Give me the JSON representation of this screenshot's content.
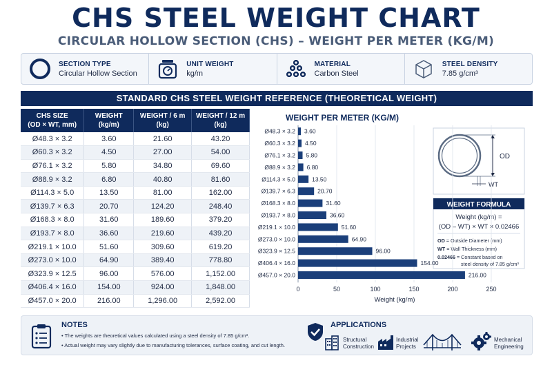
{
  "header": {
    "title": "CHS STEEL WEIGHT CHART",
    "subtitle": "CIRCULAR HOLLOW SECTION (CHS) – WEIGHT PER METER (KG/M)"
  },
  "info": [
    {
      "label": "SECTION TYPE",
      "value": "Circular Hollow Section",
      "icon": "ring-icon"
    },
    {
      "label": "UNIT WEIGHT",
      "value": "kg/m",
      "icon": "scale-icon"
    },
    {
      "label": "MATERIAL",
      "value": "Carbon Steel",
      "icon": "pipe-stack-icon"
    },
    {
      "label": "STEEL DENSITY",
      "value": "7.85 g/cm³",
      "icon": "cube-icon"
    }
  ],
  "band_title": "STANDARD CHS STEEL WEIGHT REFERENCE (THEORETICAL WEIGHT)",
  "table": {
    "headers": [
      [
        "CHS SIZE",
        "(OD × WT, mm)"
      ],
      [
        "WEIGHT",
        "(kg/m)"
      ],
      [
        "WEIGHT / 6 m",
        "(kg)"
      ],
      [
        "WEIGHT / 12 m",
        "(kg)"
      ]
    ],
    "rows": [
      [
        "Ø48.3 × 3.2",
        "3.60",
        "21.60",
        "43.20"
      ],
      [
        "Ø60.3 × 3.2",
        "4.50",
        "27.00",
        "54.00"
      ],
      [
        "Ø76.1 × 3.2",
        "5.80",
        "34.80",
        "69.60"
      ],
      [
        "Ø88.9 × 3.2",
        "6.80",
        "40.80",
        "81.60"
      ],
      [
        "Ø114.3 × 5.0",
        "13.50",
        "81.00",
        "162.00"
      ],
      [
        "Ø139.7 × 6.3",
        "20.70",
        "124.20",
        "248.40"
      ],
      [
        "Ø168.3 × 8.0",
        "31.60",
        "189.60",
        "379.20"
      ],
      [
        "Ø193.7 × 8.0",
        "36.60",
        "219.60",
        "439.20"
      ],
      [
        "Ø219.1 × 10.0",
        "51.60",
        "309.60",
        "619.20"
      ],
      [
        "Ø273.0 × 10.0",
        "64.90",
        "389.40",
        "778.80"
      ],
      [
        "Ø323.9 × 12.5",
        "96.00",
        "576.00",
        "1,152.00"
      ],
      [
        "Ø406.4 × 16.0",
        "154.00",
        "924.00",
        "1,848.00"
      ],
      [
        "Ø457.0 × 20.0",
        "216.00",
        "1,296.00",
        "2,592.00"
      ]
    ]
  },
  "chart_data": {
    "type": "bar",
    "orientation": "horizontal",
    "title": "WEIGHT PER METER (KG/M)",
    "categories": [
      "Ø48.3 × 3.2",
      "Ø60.3 × 3.2",
      "Ø76.1 × 3.2",
      "Ø88.9 × 3.2",
      "Ø114.3 × 5.0",
      "Ø139.7 × 6.3",
      "Ø168.3 × 8.0",
      "Ø193.7 × 8.0",
      "Ø219.1 × 10.0",
      "Ø273.0 × 10.0",
      "Ø323.9 × 12.5",
      "Ø406.4 × 16.0",
      "Ø457.0 × 20.0"
    ],
    "values": [
      3.6,
      4.5,
      5.8,
      6.8,
      13.5,
      20.7,
      31.6,
      36.6,
      51.6,
      64.9,
      96.0,
      154.0,
      216.0
    ],
    "value_labels": [
      "3.60",
      "4.50",
      "5.80",
      "6.80",
      "13.50",
      "20.70",
      "31.60",
      "36.60",
      "51.60",
      "64.90",
      "96.00",
      "154.00",
      "216.00"
    ],
    "xlabel": "Weight (kg/m)",
    "ylabel": "",
    "xlim": [
      0,
      250
    ],
    "xticks": [
      0,
      50,
      100,
      150,
      200,
      250
    ],
    "grid": true,
    "bar_color": "#1b3f7a"
  },
  "diagram": {
    "od_label": "OD",
    "wt_label": "WT"
  },
  "formula": {
    "title": "WEIGHT FORMULA",
    "line1": "Weight (kg/m) =",
    "line2": "(OD – WT) × WT × 0.02466",
    "defs": [
      {
        "key": "OD",
        "text": "= Outside Diameter (mm)"
      },
      {
        "key": "WT",
        "text": "= Wall Thickness (mm)"
      },
      {
        "key": "0.02466",
        "text": "= Constant based on"
      }
    ],
    "defs_extra": "steel density of 7.85 g/cm³"
  },
  "notes": {
    "title": "NOTES",
    "lines": [
      "• The weights are theoretical values calculated using a steel density of 7.85 g/cm³.",
      "• Actual weight may vary slightly due to manufacturing tolerances, surface coating, and cut length."
    ]
  },
  "applications": {
    "title": "APPLICATIONS",
    "items": [
      {
        "line1": "Structural",
        "line2": "Construction",
        "icon": "building-icon"
      },
      {
        "line1": "Industrial",
        "line2": "Projects",
        "icon": "factory-icon"
      },
      {
        "line1": "",
        "line2": "",
        "icon": "bridge-icon"
      },
      {
        "line1": "Mechanical",
        "line2": "Engineering",
        "icon": "gears-icon"
      }
    ]
  },
  "colors": {
    "navy": "#0f2a5c",
    "bar": "#1b3f7a",
    "accent_light": "#eef2f7"
  }
}
